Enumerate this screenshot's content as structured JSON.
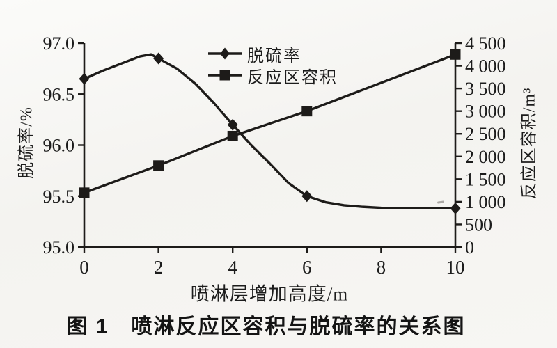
{
  "figure": {
    "caption": "图 1　喷淋反应区容积与脱硫率的关系图"
  },
  "chart_data": {
    "type": "line",
    "title": "",
    "xlabel": "喷淋层增加高度/m",
    "ylabel_left": "脱硫率/%",
    "ylabel_right": "反应区容积/m³",
    "xlim": [
      0,
      10
    ],
    "ylim_left": [
      95.0,
      97.0
    ],
    "ylim_right": [
      0,
      4500
    ],
    "xticks": [
      "0",
      "2",
      "4",
      "6",
      "8",
      "10"
    ],
    "yticks_left": [
      "95.0",
      "95.5",
      "96.0",
      "96.5",
      "97.0"
    ],
    "yticks_right": [
      "0",
      "500",
      "1 000",
      "1 500",
      "2 000",
      "2 500",
      "3 000",
      "3 500",
      "4 000",
      "4 500"
    ],
    "grid": false,
    "legend_position": "inside-top-center",
    "x": [
      0,
      2,
      4,
      6,
      10
    ],
    "series": [
      {
        "name": "脱硫率",
        "axis": "left",
        "marker": "diamond",
        "values": [
          96.65,
          96.85,
          96.2,
          95.5,
          95.38
        ],
        "trace": [
          [
            0,
            96.65
          ],
          [
            0.5,
            96.73
          ],
          [
            1,
            96.8
          ],
          [
            1.5,
            96.87
          ],
          [
            1.8,
            96.89
          ],
          [
            2,
            96.85
          ],
          [
            2.5,
            96.75
          ],
          [
            3,
            96.6
          ],
          [
            3.5,
            96.41
          ],
          [
            4,
            96.2
          ],
          [
            4.5,
            96.0
          ],
          [
            5,
            95.82
          ],
          [
            5.5,
            95.63
          ],
          [
            6,
            95.5
          ],
          [
            6.5,
            95.44
          ],
          [
            7,
            95.41
          ],
          [
            7.5,
            95.395
          ],
          [
            8,
            95.385
          ],
          [
            9,
            95.38
          ],
          [
            10,
            95.38
          ]
        ]
      },
      {
        "name": "反应区容积",
        "axis": "right",
        "marker": "square",
        "values": [
          1200,
          1800,
          2450,
          3000,
          4250
        ]
      }
    ],
    "line_color": "#1d1b19",
    "text_color": "#1c1c1c"
  }
}
